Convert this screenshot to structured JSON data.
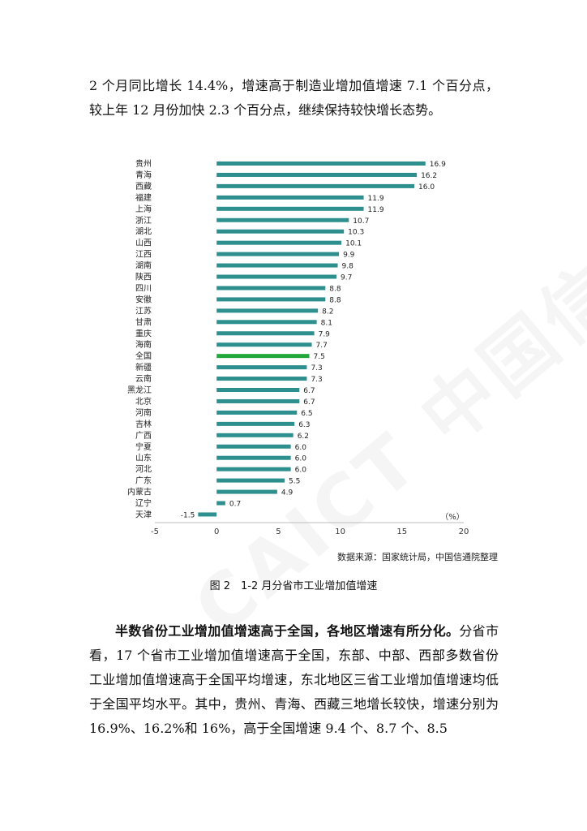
{
  "intro_text": "2 个月同比增长 14.4%，增速高于制造业增加值增速 7.1 个百分点，较上年 12 月份加快 2.3 个百分点，继续保持较快增长态势。",
  "chart_data": {
    "type": "bar",
    "orientation": "horizontal",
    "unit_label": "（%）",
    "xlim": [
      -5,
      20
    ],
    "xticks": [
      -5,
      0,
      5,
      10,
      15,
      20
    ],
    "grid": false,
    "legend": "none",
    "bar_color": "#2e8f8f",
    "highlight_color": "#22a83a",
    "highlight_category": "全国",
    "categories": [
      "贵州",
      "青海",
      "西藏",
      "福建",
      "上海",
      "浙江",
      "湖北",
      "山西",
      "江西",
      "湖南",
      "陕西",
      "四川",
      "安徽",
      "江苏",
      "甘肃",
      "重庆",
      "海南",
      "全国",
      "新疆",
      "云南",
      "黑龙江",
      "北京",
      "河南",
      "吉林",
      "广西",
      "宁夏",
      "山东",
      "河北",
      "广东",
      "内蒙古",
      "辽宁",
      "天津"
    ],
    "values": [
      16.9,
      16.2,
      16.0,
      11.9,
      11.9,
      10.7,
      10.3,
      10.1,
      9.9,
      9.8,
      9.7,
      8.8,
      8.8,
      8.2,
      8.1,
      7.9,
      7.7,
      7.5,
      7.3,
      7.3,
      6.7,
      6.7,
      6.5,
      6.3,
      6.2,
      6.0,
      6.0,
      6.0,
      5.5,
      4.9,
      0.7,
      -1.5
    ],
    "value_labels": [
      "16.9",
      "16.2",
      "16.0",
      "11.9",
      "11.9",
      "10.7",
      "10.3",
      "10.1",
      "9.9",
      "9.8",
      "9.7",
      "8.8",
      "8.8",
      "8.2",
      "8.1",
      "7.9",
      "7.7",
      "7.5",
      "7.3",
      "7.3",
      "6.7",
      "6.7",
      "6.5",
      "6.3",
      "6.2",
      "6.0",
      "6.0",
      "6.0",
      "5.5",
      "4.9",
      "0.7",
      "-1.5"
    ]
  },
  "source_text": "数据来源：国家统计局，中国信通院整理",
  "caption_text": "图 2　1-2 月分省市工业增加值增速",
  "body_lead": "半数省份工业增加值增速高于全国，各地区增速有所分化。",
  "body_rest": "分省市看，17 个省市工业增加值增速高于全国，东部、中部、西部多数省份工业增加值增速高于全国平均增速，东北地区三省工业增加值增速均低于全国平均水平。其中，贵州、青海、西藏三地增长较快，增速分别为 16.9%、16.2%和 16%，高于全国增速 9.4 个、8.7 个、8.5",
  "watermark_text": "CAICT 中国信通院"
}
